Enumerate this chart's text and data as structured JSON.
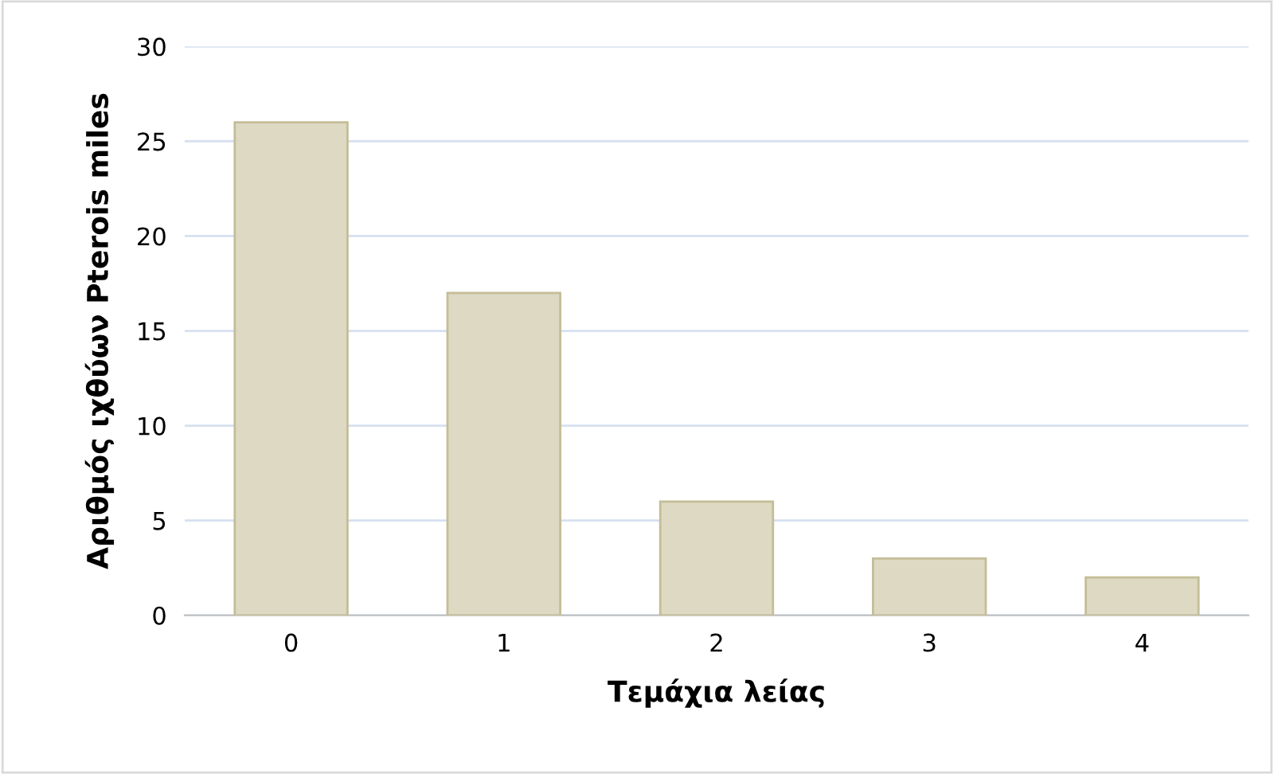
{
  "chart_data": {
    "type": "bar",
    "categories": [
      "0",
      "1",
      "2",
      "3",
      "4"
    ],
    "values": [
      26,
      17,
      6,
      3,
      2
    ],
    "color": "#ddd9c3",
    "xlabel": "Τεμάχια λείας",
    "ylabel": "Αριθμός ιχθύων Pterois miles",
    "ylim": [
      0,
      30
    ],
    "yticks": [
      0,
      5,
      10,
      15,
      20,
      25,
      30
    ],
    "grid": "y",
    "legend": false
  }
}
